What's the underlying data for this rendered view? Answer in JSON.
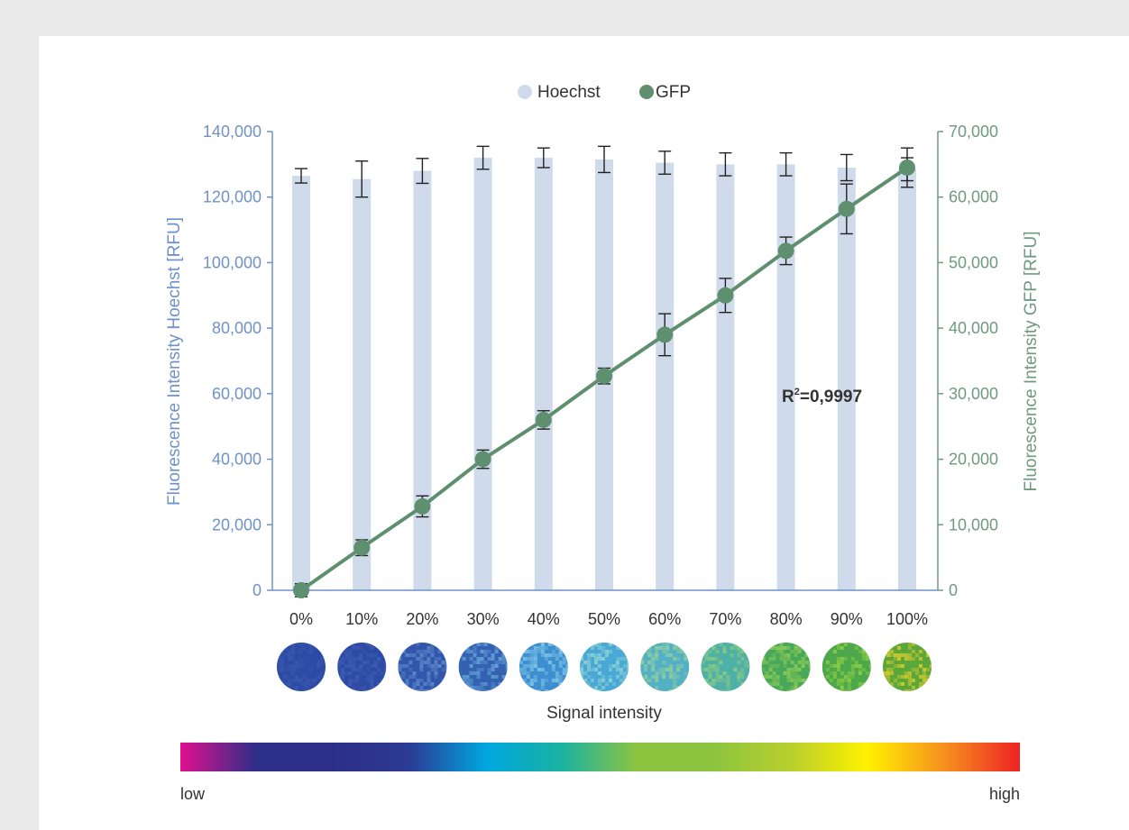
{
  "chart_data": {
    "type": "bar+line",
    "categories": [
      "0%",
      "10%",
      "20%",
      "30%",
      "40%",
      "50%",
      "60%",
      "70%",
      "80%",
      "90%",
      "100%"
    ],
    "legend": {
      "position": "top-center",
      "items": [
        "Hoechst",
        "GFP"
      ]
    },
    "series": [
      {
        "name": "Hoechst",
        "type": "bar",
        "axis": "left",
        "color": "#cfdaeb",
        "values": [
          126500,
          125500,
          128000,
          132000,
          132000,
          131500,
          130500,
          130000,
          130000,
          129000,
          128500
        ],
        "error": [
          2200,
          5500,
          3800,
          3500,
          3000,
          4000,
          3500,
          3500,
          3500,
          4000,
          3500
        ]
      },
      {
        "name": "GFP",
        "type": "line",
        "axis": "right",
        "color": "#5e8f6e",
        "values": [
          0,
          6500,
          12800,
          20000,
          26000,
          32700,
          39000,
          45000,
          51800,
          58200,
          64500
        ],
        "error": [
          1000,
          1200,
          1600,
          1400,
          1400,
          1200,
          3200,
          2600,
          2100,
          3800,
          3000
        ]
      }
    ],
    "y_left": {
      "label": "Fluorescence Intensity Hoechst [RFU]",
      "range": [
        0,
        140000
      ],
      "ticks": [
        "0",
        "20,000",
        "40,000",
        "60,000",
        "80,000",
        "100,000",
        "120,000",
        "140,000"
      ]
    },
    "y_right": {
      "label": "Fluorescence Intensity GFP [RFU]",
      "range": [
        0,
        70000
      ],
      "ticks": [
        "0",
        "10,000",
        "20,000",
        "30,000",
        "40,000",
        "50,000",
        "60,000",
        "70,000"
      ]
    },
    "annotation": {
      "base": "R",
      "sup": "2",
      "rest": "=0,9997"
    },
    "xlabel": "Signal intensity",
    "grid": false
  },
  "scale_bar": {
    "low_label": "low",
    "high_label": "high",
    "colors": [
      "#e0118e",
      "#2d2e88",
      "#2d2e88",
      "#2b3b94",
      "#00a6e0",
      "#1bb2a0",
      "#8dc43f",
      "#8dc43f",
      "#b8cf2d",
      "#fff100",
      "#f6921e",
      "#ed2224"
    ]
  },
  "well_colors": [
    [
      "#2d4ba4",
      "#3a57ae"
    ],
    [
      "#2d4ba4",
      "#3e5cb3"
    ],
    [
      "#3156ac",
      "#5c88c8"
    ],
    [
      "#3462b1",
      "#63a0d8"
    ],
    [
      "#3f8ed0",
      "#7dc4e6"
    ],
    [
      "#4aa8d6",
      "#8bd1d4"
    ],
    [
      "#54b0c4",
      "#8fcf9e"
    ],
    [
      "#4fb0a8",
      "#8acb7e"
    ],
    [
      "#47a85a",
      "#8ec956"
    ],
    [
      "#4ca84a",
      "#8ccd46"
    ],
    [
      "#5aa83c",
      "#d9c92c"
    ]
  ]
}
